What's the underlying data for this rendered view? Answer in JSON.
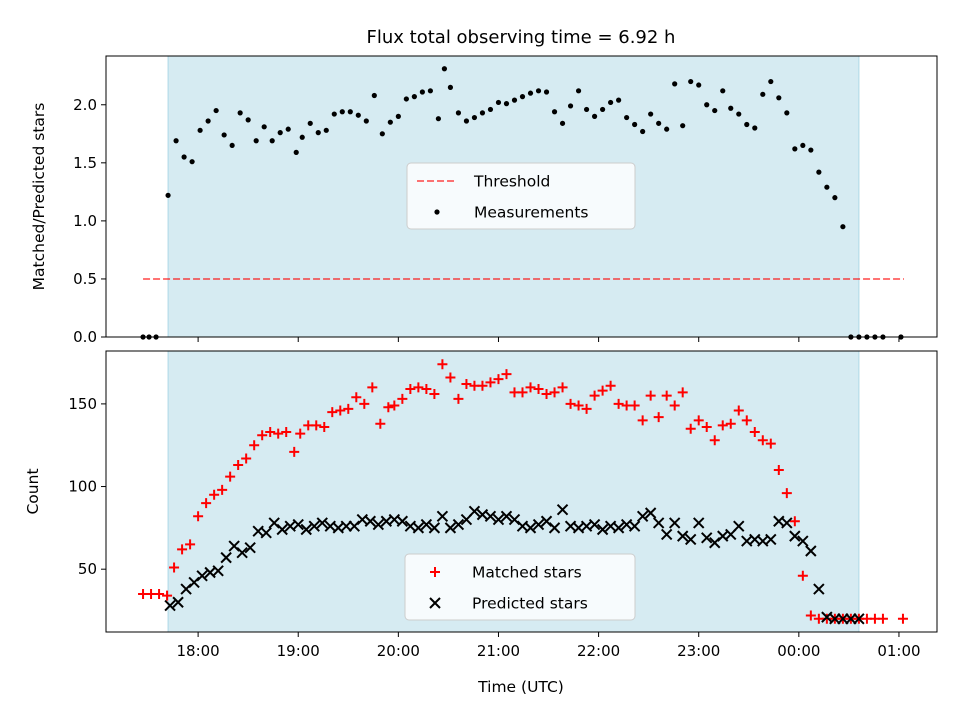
{
  "chart_data": {
    "type": "scatter",
    "title": "Flux total observing time = 6.92 h",
    "xlabel": "Time (UTC)",
    "x_unit": "hours UTC (values after 24 continue past midnight)",
    "xlim": [
      17.08,
      25.38
    ],
    "x_ticks": [
      {
        "value": 18,
        "label": "18:00"
      },
      {
        "value": 19,
        "label": "19:00"
      },
      {
        "value": 20,
        "label": "20:00"
      },
      {
        "value": 21,
        "label": "21:00"
      },
      {
        "value": 22,
        "label": "22:00"
      },
      {
        "value": 23,
        "label": "23:00"
      },
      {
        "value": 24,
        "label": "00:00"
      },
      {
        "value": 25,
        "label": "01:00"
      }
    ],
    "observing_window": {
      "start": 17.7,
      "end": 24.6,
      "color": "#add8e6"
    },
    "panels": [
      {
        "ylabel": "Matched/Predicted stars",
        "ylim": [
          0,
          2.42
        ],
        "y_ticks": [
          {
            "value": 0.0,
            "label": "0.0"
          },
          {
            "value": 0.5,
            "label": "0.5"
          },
          {
            "value": 1.0,
            "label": "1.0"
          },
          {
            "value": 1.5,
            "label": "1.5"
          },
          {
            "value": 2.0,
            "label": "2.0"
          }
        ],
        "legend": {
          "placement": "center",
          "entries": [
            "Threshold",
            "Measurements"
          ]
        },
        "threshold": {
          "name": "Threshold",
          "value": 0.5,
          "x_range": [
            17.45,
            25.05
          ],
          "color": "#ff0000",
          "style": "dashed"
        },
        "series": [
          {
            "name": "Measurements",
            "marker": "dot",
            "color": "#000000",
            "x": [
              17.45,
              17.51,
              17.58,
              17.7,
              17.78,
              17.86,
              17.94,
              18.02,
              18.1,
              18.18,
              18.26,
              18.34,
              18.42,
              18.5,
              18.58,
              18.66,
              18.74,
              18.82,
              18.9,
              18.98,
              19.04,
              19.12,
              19.2,
              19.28,
              19.36,
              19.44,
              19.52,
              19.6,
              19.68,
              19.76,
              19.84,
              19.92,
              20.0,
              20.08,
              20.16,
              20.24,
              20.32,
              20.4,
              20.46,
              20.52,
              20.6,
              20.68,
              20.76,
              20.84,
              20.92,
              21.0,
              21.08,
              21.16,
              21.24,
              21.32,
              21.4,
              21.48,
              21.56,
              21.64,
              21.72,
              21.8,
              21.88,
              21.96,
              22.04,
              22.12,
              22.2,
              22.28,
              22.36,
              22.44,
              22.52,
              22.6,
              22.68,
              22.76,
              22.84,
              22.92,
              23.0,
              23.08,
              23.16,
              23.24,
              23.32,
              23.4,
              23.48,
              23.56,
              23.64,
              23.72,
              23.8,
              23.88,
              23.96,
              24.04,
              24.12,
              24.2,
              24.28,
              24.36,
              24.44,
              24.52,
              24.6,
              24.68,
              24.76,
              24.84,
              25.02
            ],
            "y": [
              0.0,
              0.0,
              0.0,
              1.22,
              1.69,
              1.55,
              1.51,
              1.78,
              1.86,
              1.95,
              1.74,
              1.65,
              1.93,
              1.87,
              1.69,
              1.81,
              1.69,
              1.76,
              1.79,
              1.59,
              1.72,
              1.84,
              1.76,
              1.78,
              1.92,
              1.94,
              1.94,
              1.91,
              1.86,
              2.08,
              1.75,
              1.85,
              1.9,
              2.05,
              2.07,
              2.11,
              2.12,
              1.88,
              2.31,
              2.15,
              1.93,
              1.86,
              1.89,
              1.93,
              1.96,
              2.02,
              2.01,
              2.04,
              2.07,
              2.1,
              2.12,
              2.11,
              1.94,
              1.84,
              1.99,
              2.12,
              1.96,
              1.9,
              1.96,
              2.02,
              2.04,
              1.89,
              1.83,
              1.77,
              1.92,
              1.84,
              1.79,
              2.18,
              1.82,
              2.2,
              2.17,
              2.0,
              1.95,
              2.12,
              1.97,
              1.92,
              1.83,
              1.8,
              2.09,
              2.2,
              2.06,
              1.93,
              1.62,
              1.65,
              1.61,
              1.42,
              1.29,
              1.2,
              0.95,
              0.0,
              0.0,
              0.0,
              0.0,
              0.0,
              0.0
            ]
          }
        ]
      },
      {
        "ylabel": "Count",
        "ylim": [
          12,
          182
        ],
        "y_ticks": [
          {
            "value": 50,
            "label": "50"
          },
          {
            "value": 100,
            "label": "100"
          },
          {
            "value": 150,
            "label": "150"
          }
        ],
        "legend": {
          "placement": "lower center",
          "entries": [
            "Matched stars",
            "Predicted stars"
          ]
        },
        "series": [
          {
            "name": "Matched stars",
            "marker": "plus",
            "color": "#ff0000",
            "x": [
              17.45,
              17.53,
              17.61,
              17.69,
              17.76,
              17.84,
              17.92,
              18.0,
              18.08,
              18.16,
              18.24,
              18.32,
              18.4,
              18.48,
              18.56,
              18.64,
              18.72,
              18.8,
              18.88,
              18.96,
              19.02,
              19.1,
              19.18,
              19.26,
              19.34,
              19.42,
              19.5,
              19.58,
              19.66,
              19.74,
              19.82,
              19.9,
              19.96,
              20.04,
              20.12,
              20.2,
              20.28,
              20.36,
              20.44,
              20.52,
              20.6,
              20.68,
              20.76,
              20.84,
              20.92,
              21.0,
              21.08,
              21.16,
              21.24,
              21.32,
              21.4,
              21.48,
              21.56,
              21.64,
              21.72,
              21.8,
              21.88,
              21.96,
              22.04,
              22.12,
              22.2,
              22.28,
              22.36,
              22.44,
              22.52,
              22.6,
              22.68,
              22.76,
              22.84,
              22.92,
              23.0,
              23.08,
              23.16,
              23.24,
              23.32,
              23.4,
              23.48,
              23.56,
              23.64,
              23.72,
              23.8,
              23.88,
              23.96,
              24.04,
              24.12,
              24.2,
              24.28,
              24.36,
              24.44,
              24.52,
              24.6,
              24.68,
              24.76,
              24.84,
              25.04
            ],
            "y": [
              35,
              35,
              35,
              34,
              51,
              62,
              65,
              82,
              90,
              95,
              98,
              106,
              113,
              117,
              125,
              131,
              133,
              132,
              133,
              121,
              132,
              137,
              137,
              136,
              145,
              146,
              147,
              154,
              150,
              160,
              138,
              148,
              149,
              153,
              159,
              160,
              159,
              156,
              174,
              166,
              153,
              162,
              161,
              161,
              163,
              165,
              168,
              157,
              157,
              160,
              159,
              156,
              157,
              160,
              150,
              149,
              147,
              155,
              158,
              161,
              150,
              149,
              149,
              140,
              155,
              142,
              155,
              149,
              157,
              135,
              140,
              136,
              128,
              137,
              138,
              146,
              140,
              133,
              128,
              126,
              110,
              96,
              79,
              46,
              22,
              20,
              20,
              20,
              20,
              20,
              20,
              20,
              20,
              20,
              20
            ]
          },
          {
            "name": "Predicted stars",
            "marker": "x",
            "color": "#000000",
            "x": [
              17.72,
              17.8,
              17.88,
              17.96,
              18.04,
              18.12,
              18.2,
              18.28,
              18.36,
              18.44,
              18.52,
              18.6,
              18.68,
              18.76,
              18.84,
              18.92,
              19.0,
              19.08,
              19.16,
              19.24,
              19.32,
              19.4,
              19.48,
              19.56,
              19.64,
              19.72,
              19.8,
              19.88,
              19.96,
              20.04,
              20.12,
              20.2,
              20.28,
              20.36,
              20.44,
              20.52,
              20.6,
              20.68,
              20.76,
              20.84,
              20.92,
              21.0,
              21.08,
              21.16,
              21.24,
              21.32,
              21.4,
              21.48,
              21.56,
              21.64,
              21.72,
              21.8,
              21.88,
              21.96,
              22.04,
              22.12,
              22.2,
              22.28,
              22.36,
              22.44,
              22.52,
              22.6,
              22.68,
              22.76,
              22.84,
              22.92,
              23.0,
              23.08,
              23.16,
              23.24,
              23.32,
              23.4,
              23.48,
              23.56,
              23.64,
              23.72,
              23.8,
              23.88,
              23.96,
              24.04,
              24.12,
              24.2,
              24.28,
              24.36,
              24.44,
              24.52,
              24.6
            ],
            "y": [
              28,
              30,
              38,
              42,
              46,
              48,
              49,
              57,
              64,
              60,
              63,
              73,
              72,
              78,
              74,
              76,
              77,
              74,
              76,
              78,
              76,
              75,
              76,
              76,
              80,
              79,
              77,
              79,
              80,
              79,
              76,
              75,
              77,
              75,
              82,
              75,
              77,
              80,
              85,
              83,
              82,
              80,
              82,
              80,
              76,
              75,
              77,
              79,
              75,
              86,
              76,
              75,
              76,
              77,
              74,
              76,
              75,
              77,
              76,
              82,
              84,
              78,
              71,
              78,
              70,
              68,
              78,
              69,
              66,
              70,
              71,
              76,
              67,
              68,
              67,
              68,
              79,
              78,
              70,
              67,
              61,
              38,
              21,
              20,
              20,
              20,
              20
            ]
          }
        ]
      }
    ]
  }
}
